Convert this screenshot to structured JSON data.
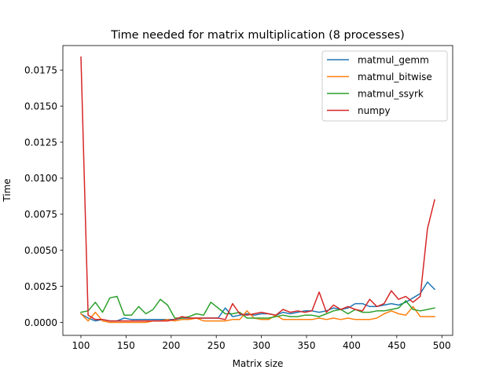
{
  "chart_data": {
    "type": "line",
    "title": "Time needed for matrix multiplication (8 processes)",
    "xlabel": "Matrix size",
    "ylabel": "Time",
    "xlim": [
      80,
      512
    ],
    "ylim": [
      -0.0009,
      0.0192
    ],
    "xticks": [
      100,
      150,
      200,
      250,
      300,
      350,
      400,
      450,
      500
    ],
    "yticks": [
      0.0,
      0.0025,
      0.005,
      0.0075,
      0.01,
      0.0125,
      0.015,
      0.0175
    ],
    "ytick_labels": [
      "0.0000",
      "0.0025",
      "0.0050",
      "0.0075",
      "0.0100",
      "0.0125",
      "0.0150",
      "0.0175"
    ],
    "grid": false,
    "legend_position": "top-right",
    "x": [
      100,
      108,
      116,
      124,
      132,
      140,
      148,
      156,
      164,
      172,
      180,
      188,
      196,
      204,
      212,
      220,
      228,
      236,
      244,
      252,
      260,
      268,
      276,
      284,
      292,
      300,
      308,
      316,
      324,
      332,
      340,
      348,
      356,
      364,
      372,
      380,
      388,
      396,
      404,
      412,
      420,
      428,
      436,
      444,
      452,
      460,
      468,
      476,
      484,
      492
    ],
    "series": [
      {
        "name": "matmul_gemm",
        "color": "#1f77b4",
        "values": [
          0.0006,
          0.0003,
          0.0001,
          0.0002,
          0.0001,
          0.0001,
          0.0003,
          0.0002,
          0.0002,
          0.0002,
          0.0002,
          0.0002,
          0.0002,
          0.0002,
          0.0003,
          0.0003,
          0.0003,
          0.0003,
          0.0003,
          0.0003,
          0.001,
          0.0004,
          0.0005,
          0.0006,
          0.0005,
          0.0006,
          0.0006,
          0.0005,
          0.0007,
          0.0006,
          0.0007,
          0.0008,
          0.0008,
          0.0007,
          0.0008,
          0.001,
          0.0009,
          0.001,
          0.0013,
          0.0013,
          0.0011,
          0.0011,
          0.0012,
          0.0013,
          0.0012,
          0.0014,
          0.0017,
          0.002,
          0.0028,
          0.0023
        ]
      },
      {
        "name": "matmul_bitwise",
        "color": "#ff7f0e",
        "values": [
          0.0006,
          0.0001,
          0.0007,
          0.0001,
          0.0,
          0.0,
          0.0,
          0.0,
          0.0,
          0.0,
          0.0001,
          0.0001,
          0.0002,
          0.0001,
          0.0002,
          0.0002,
          0.0003,
          0.0001,
          0.0001,
          0.0001,
          0.0001,
          0.0002,
          0.0002,
          0.0008,
          0.0003,
          0.0002,
          0.0002,
          0.0005,
          0.0002,
          0.0002,
          0.0002,
          0.0002,
          0.0002,
          0.0003,
          0.0002,
          0.0003,
          0.0002,
          0.0003,
          0.0002,
          0.0002,
          0.0002,
          0.0003,
          0.0006,
          0.0008,
          0.0006,
          0.0005,
          0.0011,
          0.0004,
          0.0004,
          0.0004
        ]
      },
      {
        "name": "matmul_ssyrk",
        "color": "#2ca02c",
        "values": [
          0.0007,
          0.0008,
          0.0014,
          0.0007,
          0.0017,
          0.0018,
          0.0005,
          0.0005,
          0.0011,
          0.0006,
          0.0009,
          0.0016,
          0.0012,
          0.0003,
          0.0003,
          0.0004,
          0.0006,
          0.0005,
          0.0014,
          0.001,
          0.0006,
          0.0006,
          0.0007,
          0.0003,
          0.0003,
          0.0003,
          0.0003,
          0.0004,
          0.0005,
          0.0004,
          0.0004,
          0.0005,
          0.0005,
          0.0004,
          0.0006,
          0.0008,
          0.0009,
          0.0006,
          0.0009,
          0.0007,
          0.0007,
          0.0008,
          0.0008,
          0.0009,
          0.001,
          0.0015,
          0.0009,
          0.0008,
          0.0009,
          0.001
        ]
      },
      {
        "name": "numpy",
        "color": "#d62728",
        "values": [
          0.0184,
          0.0005,
          0.0002,
          0.0002,
          0.0001,
          0.0001,
          0.0001,
          0.0001,
          0.0001,
          0.0001,
          0.0001,
          0.0001,
          0.0001,
          0.0002,
          0.0004,
          0.0003,
          0.0003,
          0.0003,
          0.0003,
          0.0003,
          0.0002,
          0.0013,
          0.0006,
          0.0005,
          0.0006,
          0.0007,
          0.0006,
          0.0005,
          0.0009,
          0.0007,
          0.0008,
          0.0007,
          0.0008,
          0.0021,
          0.0007,
          0.0012,
          0.0009,
          0.0011,
          0.0009,
          0.0008,
          0.0016,
          0.0011,
          0.0013,
          0.0022,
          0.0016,
          0.0018,
          0.0014,
          0.0018,
          0.0065,
          0.0085
        ]
      }
    ]
  }
}
